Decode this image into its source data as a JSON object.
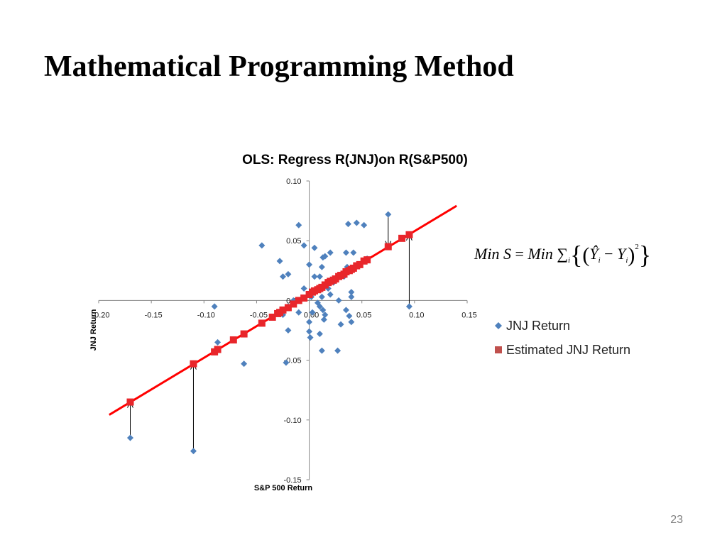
{
  "slide": {
    "title": "Mathematical Programming Method",
    "page_number": "23"
  },
  "formula": {
    "lhs": "Min S",
    "equals": "=",
    "rhs": "Min",
    "sum": "∑",
    "sum_index": "i",
    "y_hat": "Ŷ",
    "y_hat_index": "i",
    "minus": "−",
    "y": "Y",
    "y_index": "i",
    "exponent": "2"
  },
  "chart_data": {
    "type": "scatter",
    "title": "OLS: Regress R(JNJ)on R(S&P500)",
    "xlabel": "S&P 500 Return",
    "ylabel": "JNJ Return",
    "xlim": [
      -0.2,
      0.15
    ],
    "ylim": [
      -0.15,
      0.1
    ],
    "x_ticks": [
      -0.2,
      -0.15,
      -0.1,
      -0.05,
      0.0,
      0.05,
      0.1,
      0.15
    ],
    "x_tick_labels": [
      "-0.20",
      "-0.15",
      "-0.10",
      "-0.05",
      "0.00",
      "0.05",
      "0.10",
      "0.15"
    ],
    "y_ticks": [
      -0.15,
      -0.1,
      -0.05,
      0.0,
      0.05,
      0.1
    ],
    "y_tick_labels": [
      "-0.15",
      "-0.10",
      "-0.05",
      "0.00",
      "0.05",
      "0.10"
    ],
    "grid": false,
    "legend_position": "right",
    "regression_line": {
      "intercept": 0.005,
      "slope": 0.53,
      "x_range": [
        -0.19,
        0.14
      ],
      "color": "#ff0000"
    },
    "series": [
      {
        "name": "JNJ Return",
        "marker": "diamond",
        "color": "#4f81bd",
        "points": [
          [
            -0.17,
            -0.115
          ],
          [
            -0.11,
            -0.126
          ],
          [
            -0.09,
            -0.005
          ],
          [
            -0.087,
            -0.035
          ],
          [
            -0.062,
            -0.053
          ],
          [
            -0.045,
            0.046
          ],
          [
            -0.028,
            0.033
          ],
          [
            -0.025,
            0.02
          ],
          [
            -0.02,
            0.022
          ],
          [
            -0.015,
            0.0
          ],
          [
            -0.02,
            -0.005
          ],
          [
            -0.025,
            -0.012
          ],
          [
            -0.03,
            -0.01
          ],
          [
            -0.02,
            -0.025
          ],
          [
            -0.022,
            -0.052
          ],
          [
            -0.01,
            -0.01
          ],
          [
            -0.005,
            0.01
          ],
          [
            -0.01,
            0.0
          ],
          [
            -0.01,
            0.063
          ],
          [
            -0.005,
            0.046
          ],
          [
            0.0,
            0.03
          ],
          [
            0.005,
            0.044
          ],
          [
            0.005,
            0.02
          ],
          [
            0.01,
            0.02
          ],
          [
            0.012,
            0.028
          ],
          [
            0.013,
            0.036
          ],
          [
            0.015,
            0.037
          ],
          [
            0.02,
            0.04
          ],
          [
            0.023,
            0.015
          ],
          [
            0.018,
            0.01
          ],
          [
            0.012,
            0.003
          ],
          [
            0.008,
            -0.002
          ],
          [
            0.01,
            -0.005
          ],
          [
            0.013,
            -0.008
          ],
          [
            0.015,
            -0.012
          ],
          [
            0.014,
            -0.016
          ],
          [
            0.003,
            -0.01
          ],
          [
            0.0,
            -0.018
          ],
          [
            0.0,
            -0.026
          ],
          [
            0.001,
            -0.031
          ],
          [
            0.01,
            -0.028
          ],
          [
            0.012,
            -0.042
          ],
          [
            0.027,
            -0.042
          ],
          [
            0.028,
            0.0
          ],
          [
            0.03,
            -0.02
          ],
          [
            0.033,
            0.02
          ],
          [
            0.035,
            0.04
          ],
          [
            0.036,
            0.028
          ],
          [
            0.037,
            0.064
          ],
          [
            0.04,
            0.003
          ],
          [
            0.04,
            -0.018
          ],
          [
            0.042,
            0.04
          ],
          [
            0.045,
            0.065
          ],
          [
            0.052,
            0.063
          ],
          [
            0.055,
            0.035
          ],
          [
            0.02,
            0.005
          ],
          [
            0.04,
            0.007
          ],
          [
            0.035,
            -0.008
          ],
          [
            0.038,
            -0.013
          ],
          [
            0.075,
            0.072
          ],
          [
            0.095,
            -0.005
          ],
          [
            0.002,
            0.003
          ]
        ]
      },
      {
        "name": "Estimated JNJ Return",
        "marker": "square",
        "color": "#c0504d",
        "points": [
          [
            -0.17,
            -0.085
          ],
          [
            -0.11,
            -0.053
          ],
          [
            -0.09,
            -0.043
          ],
          [
            -0.087,
            -0.041
          ],
          [
            -0.072,
            -0.033
          ],
          [
            -0.062,
            -0.028
          ],
          [
            -0.045,
            -0.019
          ],
          [
            -0.035,
            -0.014
          ],
          [
            -0.03,
            -0.011
          ],
          [
            -0.028,
            -0.01
          ],
          [
            -0.025,
            -0.008
          ],
          [
            -0.02,
            -0.006
          ],
          [
            -0.015,
            -0.003
          ],
          [
            -0.01,
            0.0
          ],
          [
            -0.005,
            0.002
          ],
          [
            0.0,
            0.005
          ],
          [
            0.003,
            0.007
          ],
          [
            0.005,
            0.008
          ],
          [
            0.008,
            0.009
          ],
          [
            0.01,
            0.01
          ],
          [
            0.012,
            0.011
          ],
          [
            0.015,
            0.013
          ],
          [
            0.018,
            0.015
          ],
          [
            0.02,
            0.016
          ],
          [
            0.023,
            0.017
          ],
          [
            0.025,
            0.018
          ],
          [
            0.028,
            0.02
          ],
          [
            0.03,
            0.021
          ],
          [
            0.033,
            0.022
          ],
          [
            0.035,
            0.024
          ],
          [
            0.038,
            0.025
          ],
          [
            0.04,
            0.026
          ],
          [
            0.042,
            0.027
          ],
          [
            0.045,
            0.029
          ],
          [
            0.048,
            0.03
          ],
          [
            0.052,
            0.033
          ],
          [
            0.055,
            0.034
          ],
          [
            0.075,
            0.045
          ],
          [
            0.088,
            0.052
          ],
          [
            0.095,
            0.055
          ]
        ]
      }
    ],
    "residual_arrows": [
      {
        "x": 0.075,
        "from": 0.072,
        "to": 0.045
      },
      {
        "x": 0.095,
        "from": -0.005,
        "to": 0.055
      },
      {
        "x": -0.11,
        "from": -0.126,
        "to": -0.053
      },
      {
        "x": -0.17,
        "from": -0.115,
        "to": -0.085
      }
    ]
  }
}
